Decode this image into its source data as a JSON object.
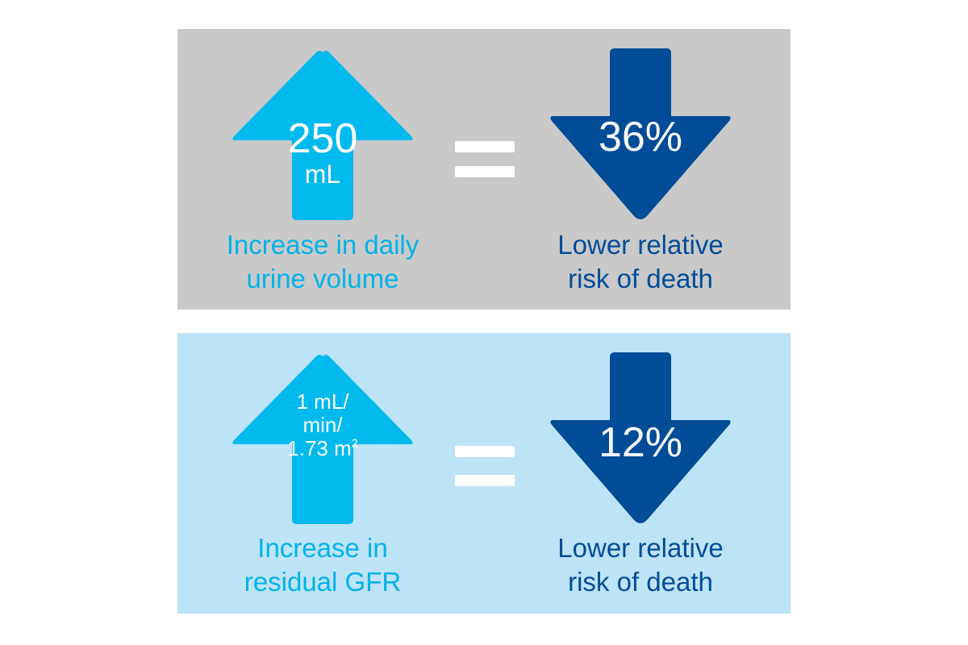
{
  "colors": {
    "panel_top_bg": "#c9c9c9",
    "panel_bottom_bg": "#bde3f6",
    "up_arrow": "#00b9ed",
    "down_arrow": "#004c97",
    "equals": "#ffffff",
    "caption_light": "#00b2e9",
    "caption_dark": "#004c97"
  },
  "icons": {
    "up": "up-arrow-icon",
    "down": "down-arrow-icon",
    "equals": "equals-sign-icon"
  },
  "panels": [
    {
      "up_arrow": {
        "value": "250",
        "unit": "mL"
      },
      "down_arrow": {
        "value": "36%"
      },
      "left_caption": {
        "line1": "Increase in daily",
        "line2": "urine volume"
      },
      "right_caption": {
        "line1": "Lower relative",
        "line2": "risk of death"
      }
    },
    {
      "up_arrow": {
        "line1": "1 mL/",
        "line2": "min/",
        "line3_base": "1.73 m",
        "line3_sup": "2"
      },
      "down_arrow": {
        "value": "12%"
      },
      "left_caption": {
        "line1": "Increase in",
        "line2": "residual GFR"
      },
      "right_caption": {
        "line1": "Lower relative",
        "line2": "risk of death"
      }
    }
  ]
}
